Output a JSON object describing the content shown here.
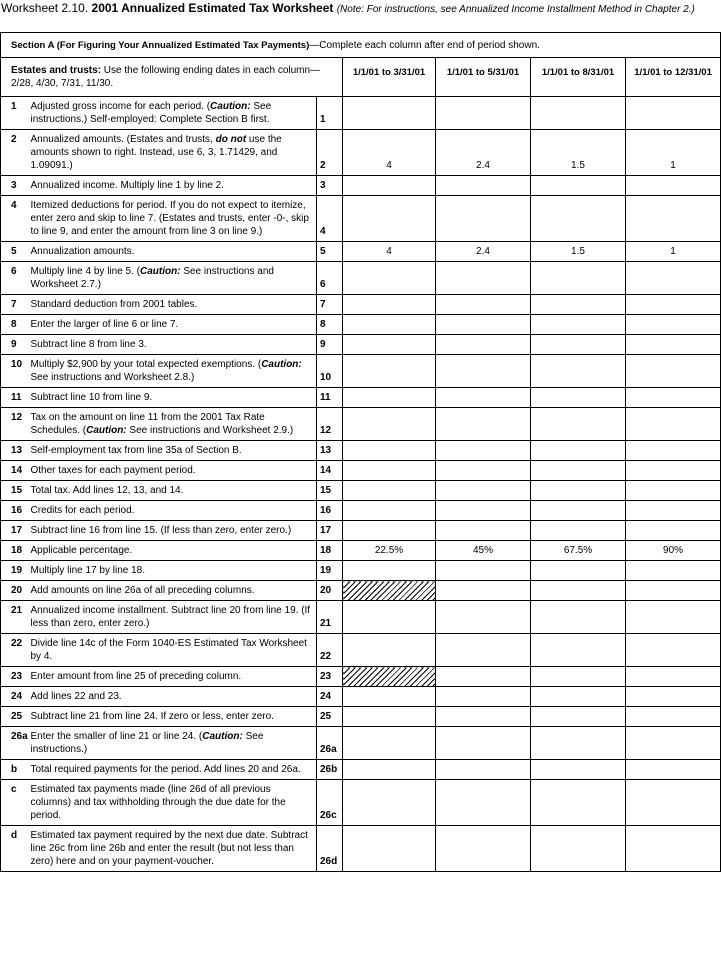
{
  "title": {
    "prefix": "Worksheet 2.10.",
    "main": "2001 Annualized Estimated Tax Worksheet",
    "note": "(Note: For instructions, see Annualized Income Installment Method in Chapter 2.)"
  },
  "section": {
    "label": "Section A (For Figuring Your Annualized Estimated Tax Payments)",
    "text": "—Complete each column after end of period shown."
  },
  "header": {
    "estates_label": "Estates and trusts:",
    "estates_text": " Use the following ending dates in each column—2/28, 4/30, 7/31, 11/30.",
    "columns": [
      "1/1/01 to 3/31/01",
      "1/1/01 to 5/31/01",
      "1/1/01 to 8/31/01",
      "1/1/01 to 12/31/01"
    ]
  },
  "rows": [
    {
      "num": "1",
      "text": [
        "Adjusted gross income for each period. (",
        "Caution:",
        " See instructions.) Self-employed: Complete Section B first."
      ],
      "line": "1",
      "cells": [
        null,
        null,
        null,
        null
      ]
    },
    {
      "num": "2",
      "text": [
        "Annualized amounts. (Estates and trusts, ",
        "do not",
        " use the amounts shown to right. Instead, use 6, 3, 1.71429, and 1.09091.)"
      ],
      "line": "2",
      "cells": [
        4,
        2.4,
        1.5,
        1
      ]
    },
    {
      "num": "3",
      "text": [
        "Annualized income. Multiply line 1 by line 2."
      ],
      "line": "3",
      "cells": [
        null,
        null,
        null,
        null
      ]
    },
    {
      "num": "4",
      "text": [
        "Itemized deductions for period. If you do not expect to itemize, enter zero and skip to line 7. (Estates and trusts, enter -0-, skip to line 9, and enter the amount from line 3 on line 9.)"
      ],
      "line": "4",
      "cells": [
        null,
        null,
        null,
        null
      ]
    },
    {
      "num": "5",
      "text": [
        "Annualization amounts."
      ],
      "line": "5",
      "cells": [
        4,
        2.4,
        1.5,
        1
      ]
    },
    {
      "num": "6",
      "text": [
        "Multiply line 4 by line 5. (",
        "Caution:",
        " See instructions and Worksheet 2.7.)"
      ],
      "line": "6",
      "cells": [
        null,
        null,
        null,
        null
      ]
    },
    {
      "num": "7",
      "text": [
        "Standard deduction from 2001 tables."
      ],
      "line": "7",
      "cells": [
        null,
        null,
        null,
        null
      ]
    },
    {
      "num": "8",
      "text": [
        "Enter the larger of line 6 or line 7."
      ],
      "line": "8",
      "cells": [
        null,
        null,
        null,
        null
      ]
    },
    {
      "num": "9",
      "text": [
        "Subtract line 8 from line 3."
      ],
      "line": "9",
      "cells": [
        null,
        null,
        null,
        null
      ]
    },
    {
      "num": "10",
      "text": [
        "Multiply $2,900 by your total expected exemptions. (",
        "Caution:",
        " See instructions and Worksheet 2.8.)"
      ],
      "line": "10",
      "cells": [
        null,
        null,
        null,
        null
      ]
    },
    {
      "num": "11",
      "text": [
        "Subtract line 10 from line 9."
      ],
      "line": "11",
      "cells": [
        null,
        null,
        null,
        null
      ]
    },
    {
      "num": "12",
      "text": [
        "Tax on the amount on line 11 from the 2001 Tax Rate Schedules. (",
        "Caution:",
        " See instructions and Worksheet 2.9.)"
      ],
      "line": "12",
      "cells": [
        null,
        null,
        null,
        null
      ]
    },
    {
      "num": "13",
      "text": [
        "Self-employment tax from line 35a of Section B."
      ],
      "line": "13",
      "cells": [
        null,
        null,
        null,
        null
      ]
    },
    {
      "num": "14",
      "text": [
        "Other taxes for each payment period."
      ],
      "line": "14",
      "cells": [
        null,
        null,
        null,
        null
      ]
    },
    {
      "num": "15",
      "text": [
        "Total tax. Add lines 12, 13, and 14."
      ],
      "line": "15",
      "cells": [
        null,
        null,
        null,
        null
      ]
    },
    {
      "num": "16",
      "text": [
        "Credits for each period."
      ],
      "line": "16",
      "cells": [
        null,
        null,
        null,
        null
      ]
    },
    {
      "num": "17",
      "text": [
        "Subtract line 16 from line 15. (If less than zero, enter zero.)"
      ],
      "line": "17",
      "cells": [
        null,
        null,
        null,
        null
      ]
    },
    {
      "num": "18",
      "text": [
        "Applicable percentage."
      ],
      "line": "18",
      "cells": [
        "22.5%",
        "45%",
        "67.5%",
        "90%"
      ]
    },
    {
      "num": "19",
      "text": [
        "Multiply line 17 by line 18."
      ],
      "line": "19",
      "cells": [
        null,
        null,
        null,
        null
      ]
    },
    {
      "num": "20",
      "text": [
        "Add amounts on line 26a of all preceding columns."
      ],
      "line": "20",
      "cells": [
        null,
        null,
        null,
        null
      ],
      "shaded": true
    },
    {
      "num": "21",
      "text": [
        "Annualized income installment. Subtract line 20 from line 19. (If less than zero, enter zero.)"
      ],
      "line": "21",
      "cells": [
        null,
        null,
        null,
        null
      ]
    },
    {
      "num": "22",
      "text": [
        "Divide line 14c of the Form 1040-ES Estimated Tax Worksheet by 4."
      ],
      "line": "22",
      "cells": [
        null,
        null,
        null,
        null
      ]
    },
    {
      "num": "23",
      "text": [
        "Enter amount from line 25 of preceding column."
      ],
      "line": "23",
      "cells": [
        null,
        null,
        null,
        null
      ],
      "shaded": true
    },
    {
      "num": "24",
      "text": [
        "Add lines 22 and 23."
      ],
      "line": "24",
      "cells": [
        null,
        null,
        null,
        null
      ]
    },
    {
      "num": "25",
      "text": [
        "Subtract line 21 from line 24. If zero or less, enter zero."
      ],
      "line": "25",
      "cells": [
        null,
        null,
        null,
        null
      ]
    },
    {
      "num": "26a",
      "text": [
        "Enter the smaller of line 21 or line 24. (",
        "Caution:",
        " See instructions.)"
      ],
      "line": "26a",
      "cells": [
        null,
        null,
        null,
        null
      ]
    },
    {
      "num": "b",
      "text": [
        "Total required payments for the period. Add lines 20 and 26a."
      ],
      "line": "26b",
      "cells": [
        null,
        null,
        null,
        null
      ]
    },
    {
      "num": "c",
      "text": [
        "Estimated tax payments made (line 26d of all previous columns) and tax withholding through the due date for the period."
      ],
      "line": "26c",
      "cells": [
        null,
        null,
        null,
        null
      ]
    },
    {
      "num": "d",
      "text": [
        "Estimated tax payment required by the next due date. Subtract line 26c from line 26b and enter the result (but not less than zero) here and on your payment-voucher."
      ],
      "line": "26d",
      "cells": [
        null,
        null,
        null,
        null
      ]
    }
  ]
}
